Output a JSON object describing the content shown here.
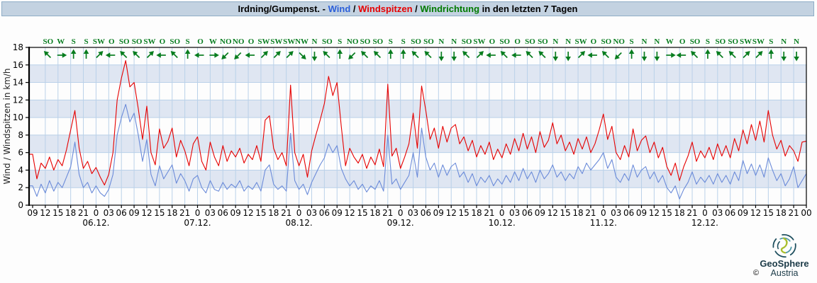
{
  "title_bar": {
    "station": "Irdning/Gumpenst.",
    "dash": " - ",
    "wind": "Wind",
    "slash1": " / ",
    "peaks": "Windspitzen",
    "slash2": " / ",
    "direction": "Windrichtung",
    "suffix": " in den letzten 7 Tagen"
  },
  "colors": {
    "text": "#000000",
    "title_wind": "#2b5fd9",
    "title_peaks": "#e60000",
    "title_direction": "#007a00",
    "wind": "#6b8bd9",
    "windspitzen": "#e60000",
    "direction": "#087d1f",
    "grid": "#bad1e9",
    "band": "#dfe6f2",
    "axis": "#000000",
    "titlebar_bg": "#c3d2e1",
    "titlebar_border": "#8fadc7",
    "logo_text": "#1b3a47",
    "logo_dark": "#1d4e5d",
    "logo_teal": "#4d97a5",
    "logo_green": "#aabe2c"
  },
  "chart_data": {
    "type": "line",
    "title": "Irdning/Gumpenst. - Wind / Windspitzen / Windrichtung in den letzten 7 Tagen",
    "ylabel": "Wind / Windspitzen in km/h",
    "ylim": [
      0,
      18
    ],
    "y_ticks": [
      0,
      2,
      4,
      6,
      8,
      10,
      12,
      14,
      16,
      18
    ],
    "grid": true,
    "shaded_bands": [
      [
        2,
        4
      ],
      [
        6,
        8
      ],
      [
        10,
        12
      ],
      [
        14,
        16
      ]
    ],
    "x_start": "05.12. 09:00",
    "x_end": "13.12. 00:00",
    "x_step_hours": 1,
    "x_tick_step_hours": 3,
    "x_tick_labels": [
      "09",
      "12",
      "15",
      "18",
      "21",
      "0",
      "03",
      "06",
      "09",
      "12",
      "15",
      "18",
      "21",
      "0",
      "03",
      "06",
      "09",
      "12",
      "15",
      "18",
      "21",
      "0",
      "03",
      "06",
      "09",
      "12",
      "15",
      "18",
      "21",
      "0",
      "03",
      "06",
      "09",
      "12",
      "15",
      "18",
      "21",
      "0",
      "03",
      "06",
      "09",
      "12",
      "15",
      "18",
      "21",
      "0",
      "03",
      "06",
      "09",
      "12",
      "15",
      "18",
      "21",
      "0",
      "03",
      "06",
      "09",
      "12",
      "15",
      "18",
      "21",
      "00"
    ],
    "date_labels": [
      "06.12.",
      "07.12.",
      "08.12.",
      "09.12.",
      "10.12.",
      "11.12.",
      "12.12."
    ],
    "date_tick_indices": [
      5,
      13,
      21,
      29,
      37,
      45,
      53
    ],
    "series": [
      {
        "name": "Wind",
        "color_key": "wind",
        "values": [
          2.2,
          1.0,
          2.4,
          1.4,
          2.8,
          1.6,
          2.6,
          2.0,
          3.2,
          4.4,
          7.2,
          3.5,
          2.0,
          2.6,
          1.4,
          2.2,
          1.4,
          1.0,
          1.8,
          3.5,
          8.0,
          10.0,
          11.5,
          9.5,
          10.5,
          8.0,
          5.0,
          7.5,
          3.5,
          2.2,
          4.5,
          3.0,
          3.8,
          4.6,
          2.5,
          3.6,
          2.8,
          1.6,
          3.0,
          3.4,
          2.0,
          1.4,
          2.8,
          1.8,
          1.6,
          2.6,
          1.8,
          2.4,
          2.0,
          2.8,
          1.6,
          2.2,
          1.8,
          2.6,
          1.6,
          4.0,
          4.6,
          2.4,
          1.8,
          2.2,
          1.6,
          8.2,
          2.8,
          1.8,
          2.4,
          1.2,
          2.6,
          3.6,
          4.6,
          5.4,
          7.0,
          6.0,
          6.8,
          4.2,
          3.0,
          2.2,
          2.8,
          1.8,
          2.4,
          1.5,
          2.2,
          1.8,
          2.8,
          1.6,
          8.0,
          2.4,
          3.0,
          1.8,
          2.6,
          3.4,
          6.0,
          3.2,
          8.8,
          5.5,
          4.0,
          4.8,
          3.2,
          4.6,
          3.4,
          4.4,
          4.8,
          3.2,
          3.8,
          2.6,
          3.6,
          2.2,
          3.2,
          2.6,
          3.4,
          2.2,
          3.0,
          2.4,
          3.4,
          2.6,
          3.8,
          2.8,
          4.2,
          3.0,
          3.8,
          2.6,
          4.0,
          3.0,
          3.6,
          4.6,
          3.2,
          3.8,
          2.8,
          3.6,
          3.0,
          4.4,
          3.6,
          4.8,
          4.0,
          4.6,
          5.2,
          6.0,
          4.2,
          5.2,
          3.2,
          2.6,
          3.6,
          2.8,
          4.6,
          3.2,
          4.0,
          4.4,
          3.0,
          3.8,
          2.6,
          3.4,
          2.0,
          1.4,
          2.2,
          0.7,
          1.8,
          2.6,
          3.8,
          2.4,
          3.2,
          2.6,
          3.4,
          2.4,
          3.6,
          2.6,
          3.4,
          2.4,
          3.8,
          2.8,
          5.1,
          3.6,
          4.7,
          3.4,
          4.6,
          3.2,
          5.4,
          4.0,
          2.8,
          3.6,
          2.2,
          3.0,
          4.4,
          2.0,
          2.8,
          3.6
        ]
      },
      {
        "name": "Windspitzen",
        "color_key": "windspitzen",
        "values": [
          5.8,
          3.0,
          4.8,
          4.2,
          5.5,
          4.0,
          5.2,
          4.5,
          6.3,
          8.6,
          10.8,
          6.5,
          4.2,
          5.0,
          3.6,
          4.3,
          3.2,
          2.3,
          3.5,
          6.0,
          12.0,
          14.5,
          16.5,
          13.5,
          14.0,
          11.0,
          7.5,
          11.3,
          6.0,
          4.6,
          8.7,
          6.5,
          7.3,
          8.8,
          5.5,
          7.4,
          6.2,
          4.5,
          7.0,
          7.8,
          5.0,
          4.0,
          7.2,
          5.5,
          4.5,
          6.8,
          5.0,
          6.2,
          5.5,
          6.5,
          4.8,
          5.8,
          5.2,
          6.8,
          5.0,
          9.7,
          10.2,
          6.5,
          5.2,
          6.0,
          4.5,
          13.7,
          6.0,
          4.5,
          5.8,
          3.2,
          6.2,
          8.0,
          9.7,
          11.6,
          14.7,
          12.5,
          14.0,
          9.0,
          4.5,
          6.5,
          5.5,
          4.8,
          5.8,
          4.2,
          5.5,
          4.6,
          6.4,
          4.4,
          13.8,
          5.6,
          6.5,
          4.2,
          5.5,
          7.0,
          10.5,
          6.5,
          13.6,
          10.8,
          7.5,
          8.8,
          6.5,
          9.0,
          7.2,
          8.8,
          9.2,
          7.0,
          7.8,
          6.2,
          7.4,
          5.5,
          6.8,
          5.8,
          7.2,
          5.2,
          6.4,
          5.4,
          7.0,
          5.8,
          7.6,
          6.2,
          8.2,
          6.4,
          7.8,
          6.0,
          8.4,
          6.6,
          7.4,
          9.4,
          7.0,
          8.0,
          6.2,
          7.2,
          5.8,
          7.6,
          6.4,
          7.8,
          6.0,
          7.0,
          8.6,
          10.4,
          7.5,
          9.0,
          6.0,
          5.2,
          6.8,
          5.5,
          8.7,
          6.2,
          7.4,
          7.9,
          6.0,
          7.2,
          5.4,
          6.6,
          4.4,
          3.4,
          4.8,
          2.8,
          4.4,
          5.6,
          7.2,
          5.0,
          6.2,
          5.4,
          6.6,
          5.2,
          7.0,
          5.6,
          6.8,
          5.4,
          7.6,
          6.2,
          8.6,
          7.0,
          9.2,
          7.4,
          9.6,
          7.2,
          10.8,
          8.0,
          6.4,
          7.4,
          5.6,
          6.8,
          6.2,
          5.0,
          7.2,
          7.3
        ]
      }
    ],
    "wind_directions": {
      "start": "05.12. 12:00",
      "step_hours": 3,
      "labels": [
        "SO",
        "W",
        "S",
        "S",
        "SW",
        "O",
        "SO",
        "SO",
        "SW",
        "O",
        "SO",
        "S",
        "O",
        "W",
        "NO",
        "NO",
        "O",
        "SW",
        "SW",
        "SW",
        "NW",
        "N",
        "SO",
        "S",
        "NO",
        "SO",
        "SO",
        "S",
        "S",
        "SO",
        "SO",
        "N",
        "N",
        "SO",
        "SW",
        "O",
        "SO",
        "O",
        "SO",
        "SO",
        "N",
        "N",
        "SW",
        "O",
        "SO",
        "NO",
        "S",
        "N",
        "N",
        "W",
        "O",
        "SO",
        "S",
        "SO",
        "SO",
        "SW",
        "SW",
        "S",
        "N",
        "N"
      ]
    }
  },
  "logo": {
    "name": "GeoSphere",
    "country": "Austria",
    "copyright": "©"
  }
}
